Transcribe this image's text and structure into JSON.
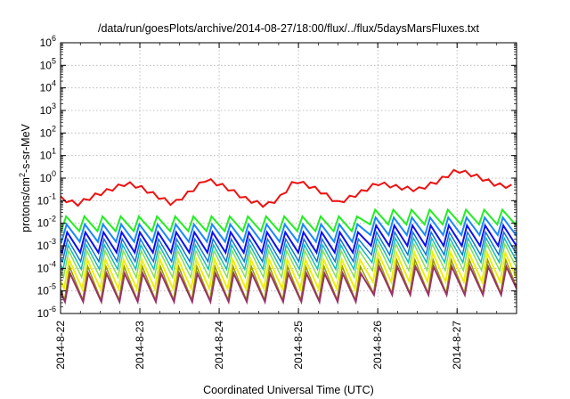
{
  "chart_data": {
    "type": "line",
    "title": "/data/run/goesPlots/archive/2014-08-27/18:00/flux/../flux/5daysMarsFluxes.txt",
    "xlabel": "Coordinated Universal Time (UTC)",
    "ylabel_parts": [
      "protons/cm",
      "2",
      "-s-sr-MeV"
    ],
    "x_scale": "time",
    "x_range": [
      "2014-08-22T00:00",
      "2014-08-27T18:00"
    ],
    "x_ticks": [
      "2014-8-22",
      "2014-8-23",
      "2014-8-24",
      "2014-8-25",
      "2014-8-26",
      "2014-8-27"
    ],
    "y_scale": "log",
    "y_range": [
      1e-06,
      1000000.0
    ],
    "y_ticks": [
      "-6",
      "-5",
      "-4",
      "-3",
      "-2",
      "-1",
      "0",
      "1",
      "2",
      "3",
      "4",
      "5",
      "6"
    ],
    "y_tick_base": "10",
    "grid": true,
    "legend": "none",
    "periodic_series_pattern": {
      "period_hours": 5.5,
      "rise_fraction": 0.28,
      "step_up_time": "2014-08-25T23:00",
      "step_up_factor": 2.0
    },
    "series": [
      {
        "color": "#ee1111",
        "width": 2.0,
        "points": [
          [
            "2014-08-22T00:00",
            0.13
          ],
          [
            "2014-08-22T05:00",
            0.07
          ],
          [
            "2014-08-22T10:00",
            0.16
          ],
          [
            "2014-08-22T16:00",
            0.35
          ],
          [
            "2014-08-22T20:00",
            0.6
          ],
          [
            "2014-08-23T00:00",
            0.4
          ],
          [
            "2014-08-23T06:00",
            0.14
          ],
          [
            "2014-08-23T10:00",
            0.07
          ],
          [
            "2014-08-23T16:00",
            0.3
          ],
          [
            "2014-08-23T20:00",
            0.9
          ],
          [
            "2014-08-24T02:00",
            0.4
          ],
          [
            "2014-08-24T08:00",
            0.12
          ],
          [
            "2014-08-24T14:00",
            0.06
          ],
          [
            "2014-08-24T18:00",
            0.12
          ],
          [
            "2014-08-24T23:00",
            0.8
          ],
          [
            "2014-08-25T06:00",
            0.3
          ],
          [
            "2014-08-25T12:00",
            0.08
          ],
          [
            "2014-08-25T18:00",
            0.2
          ],
          [
            "2014-08-26T00:00",
            0.6
          ],
          [
            "2014-08-26T06:00",
            0.4
          ],
          [
            "2014-08-26T12:00",
            0.3
          ],
          [
            "2014-08-26T18:00",
            0.7
          ],
          [
            "2014-08-27T00:00",
            2.3
          ],
          [
            "2014-08-27T06:00",
            1.2
          ],
          [
            "2014-08-27T12:00",
            0.5
          ],
          [
            "2014-08-27T18:00",
            0.4
          ]
        ],
        "ripple": 1.5,
        "ripple_period_hours": 3.5
      },
      {
        "color": "#22ee22",
        "width": 2.0,
        "max": 0.02,
        "ratio": 4.5
      },
      {
        "color": "#1a88ff",
        "width": 2.0,
        "max": 0.009,
        "ratio": 6.0
      },
      {
        "color": "#1010ee",
        "width": 2.0,
        "max": 0.004,
        "ratio": 8.0
      },
      {
        "color": "#1177cc",
        "width": 1.5,
        "max": 0.002,
        "ratio": 10.0
      },
      {
        "color": "#11bbbb",
        "width": 1.5,
        "max": 0.0011,
        "ratio": 12.0
      },
      {
        "color": "#88dd55",
        "width": 1.5,
        "max": 0.0006,
        "ratio": 15.0
      },
      {
        "color": "#eeee11",
        "width": 2.0,
        "max": 0.00025,
        "ratio": 20.0
      },
      {
        "color": "#999900",
        "width": 1.5,
        "max": 0.00012,
        "ratio": 30.0
      },
      {
        "color": "#993366",
        "width": 2.0,
        "max": 6e-05,
        "ratio": 18.0
      }
    ]
  }
}
